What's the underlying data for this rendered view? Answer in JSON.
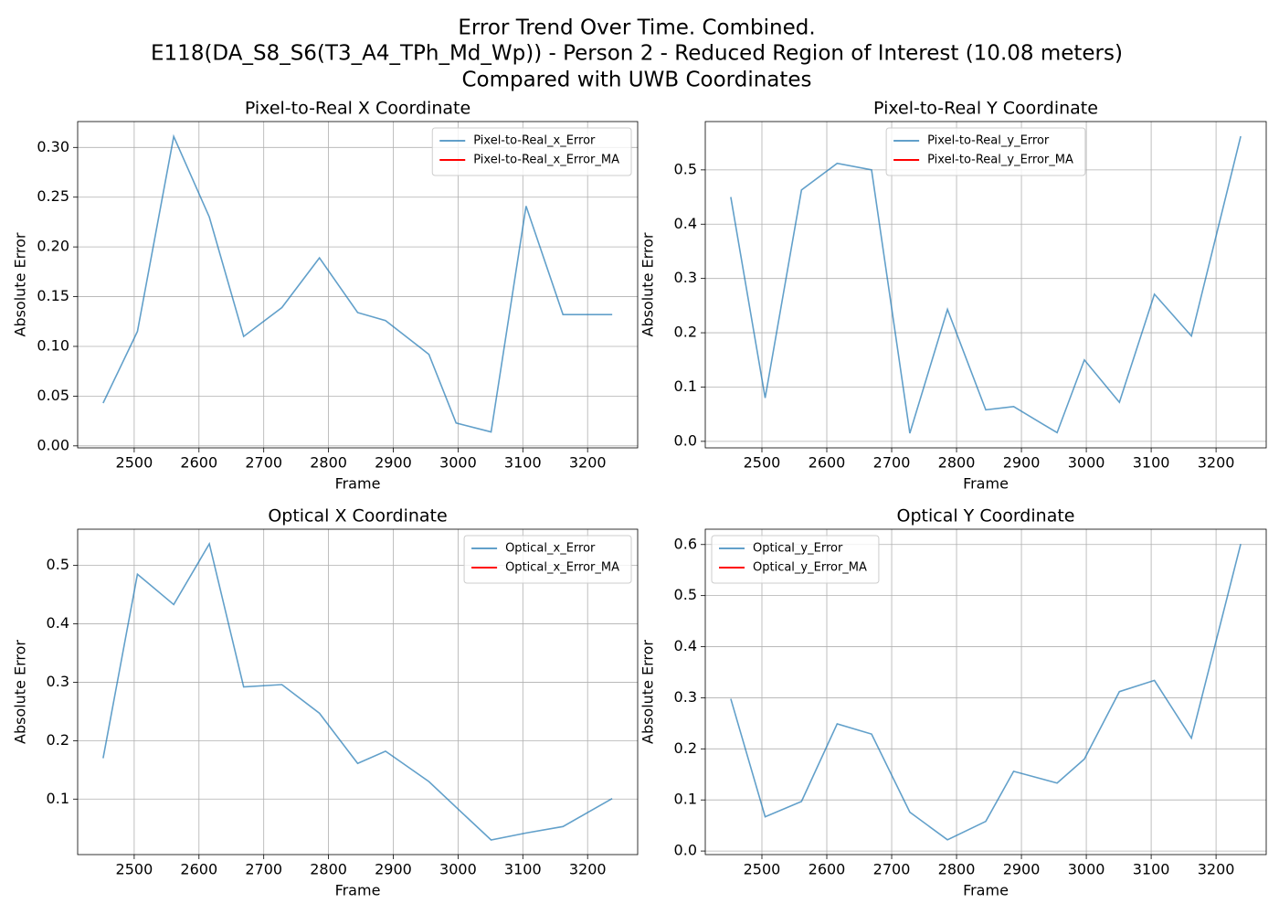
{
  "title": [
    "Error Trend Over Time. Combined.",
    "E118(DA_S8_S6(T3_A4_TPh_Md_Wp)) - Person 2 - Reduced Region of Interest (10.08 meters)",
    "Compared with UWB Coordinates"
  ],
  "chart_data": [
    {
      "type": "line",
      "title": "Pixel-to-Real X Coordinate",
      "xlabel": "Frame",
      "ylabel": "Absolute Error",
      "grid": true,
      "legend": "upper right",
      "x": [
        2452,
        2505,
        2561,
        2616,
        2669,
        2728,
        2786,
        2845,
        2888,
        2955,
        2997,
        3051,
        3105,
        3162,
        3238
      ],
      "series": [
        {
          "name": "Pixel-to-Real_x_Error",
          "color": "#1f77b4",
          "alpha": 0.7,
          "values": [
            0.043,
            0.115,
            0.311,
            0.23,
            0.11,
            0.139,
            0.189,
            0.134,
            0.126,
            0.092,
            0.023,
            0.014,
            0.241,
            0.132,
            0.132
          ]
        },
        {
          "name": "Pixel-to-Real_x_Error_MA",
          "color": "red",
          "alpha": 1,
          "values": [
            null,
            null,
            null,
            null,
            null,
            null,
            null,
            null,
            null,
            null,
            null,
            null,
            null,
            null,
            null
          ]
        }
      ],
      "xlim": [
        2412.7,
        3277.3
      ],
      "xticks": [
        2500,
        2600,
        2700,
        2800,
        2900,
        3000,
        3100,
        3200
      ],
      "ylim": [
        -0.002,
        0.326
      ],
      "yticks": [
        {
          "value": 0,
          "label": "0.00"
        },
        0.05,
        {
          "value": 0.1,
          "label": "0.10"
        },
        0.15,
        {
          "value": 0.2,
          "label": "0.20"
        },
        0.25,
        {
          "value": 0.3,
          "label": "0.30"
        }
      ]
    },
    {
      "type": "line",
      "title": "Pixel-to-Real Y Coordinate",
      "xlabel": "Frame",
      "ylabel": "Absolute Error",
      "grid": true,
      "legend": "upper center",
      "x": [
        2452,
        2505,
        2561,
        2616,
        2669,
        2728,
        2786,
        2845,
        2888,
        2955,
        2997,
        3051,
        3105,
        3162,
        3238
      ],
      "series": [
        {
          "name": "Pixel-to-Real_y_Error",
          "color": "#1f77b4",
          "alpha": 0.7,
          "values": [
            0.45,
            0.08,
            0.463,
            0.512,
            0.5,
            0.015,
            0.243,
            0.058,
            0.064,
            0.016,
            0.15,
            0.072,
            0.271,
            0.194,
            0.562
          ]
        },
        {
          "name": "Pixel-to-Real_y_Error_MA",
          "color": "red",
          "alpha": 1,
          "values": [
            null,
            null,
            null,
            null,
            null,
            null,
            null,
            null,
            null,
            null,
            null,
            null,
            null,
            null,
            null
          ]
        }
      ],
      "xlim": [
        2412.7,
        3277.3
      ],
      "xticks": [
        2500,
        2600,
        2700,
        2800,
        2900,
        3000,
        3100,
        3200
      ],
      "ylim": [
        -0.012,
        0.589
      ],
      "yticks": [
        {
          "value": 0,
          "label": "0.0"
        },
        0.1,
        0.2,
        0.3,
        0.4,
        0.5
      ]
    },
    {
      "type": "line",
      "title": "Optical X Coordinate",
      "xlabel": "Frame",
      "ylabel": "Absolute Error",
      "grid": true,
      "legend": "upper right",
      "x": [
        2452,
        2505,
        2561,
        2616,
        2669,
        2728,
        2786,
        2845,
        2888,
        2955,
        2997,
        3051,
        3105,
        3162,
        3238
      ],
      "series": [
        {
          "name": "Optical_x_Error",
          "color": "#1f77b4",
          "alpha": 0.7,
          "values": [
            0.17,
            0.485,
            0.433,
            0.537,
            0.292,
            0.296,
            0.247,
            0.161,
            0.182,
            0.13,
            0.086,
            0.03,
            0.042,
            0.053,
            0.101
          ]
        },
        {
          "name": "Optical_x_Error_MA",
          "color": "red",
          "alpha": 1,
          "values": [
            null,
            null,
            null,
            null,
            null,
            null,
            null,
            null,
            null,
            null,
            null,
            null,
            null,
            null,
            null
          ]
        }
      ],
      "xlim": [
        2412.7,
        3277.3
      ],
      "xticks": [
        2500,
        2600,
        2700,
        2800,
        2900,
        3000,
        3100,
        3200
      ],
      "ylim": [
        0.005,
        0.562
      ],
      "yticks": [
        0.1,
        0.2,
        0.3,
        0.4,
        0.5
      ]
    },
    {
      "type": "line",
      "title": "Optical Y Coordinate",
      "xlabel": "Frame",
      "ylabel": "Absolute Error",
      "grid": true,
      "legend": "upper left",
      "x": [
        2452,
        2505,
        2561,
        2616,
        2669,
        2728,
        2786,
        2845,
        2888,
        2955,
        2997,
        3051,
        3105,
        3162,
        3238
      ],
      "series": [
        {
          "name": "Optical_y_Error",
          "color": "#1f77b4",
          "alpha": 0.7,
          "values": [
            0.298,
            0.067,
            0.097,
            0.249,
            0.229,
            0.076,
            0.022,
            0.058,
            0.156,
            0.133,
            0.18,
            0.312,
            0.334,
            0.221,
            0.601
          ]
        },
        {
          "name": "Optical_y_Error_MA",
          "color": "red",
          "alpha": 1,
          "values": [
            null,
            null,
            null,
            null,
            null,
            null,
            null,
            null,
            null,
            null,
            null,
            null,
            null,
            null,
            null
          ]
        }
      ],
      "xlim": [
        2412.7,
        3277.3
      ],
      "xticks": [
        2500,
        2600,
        2700,
        2800,
        2900,
        3000,
        3100,
        3200
      ],
      "ylim": [
        -0.007,
        0.63
      ],
      "yticks": [
        {
          "value": 0,
          "label": "0.0"
        },
        0.1,
        0.2,
        0.3,
        0.4,
        0.5,
        0.6
      ]
    }
  ]
}
